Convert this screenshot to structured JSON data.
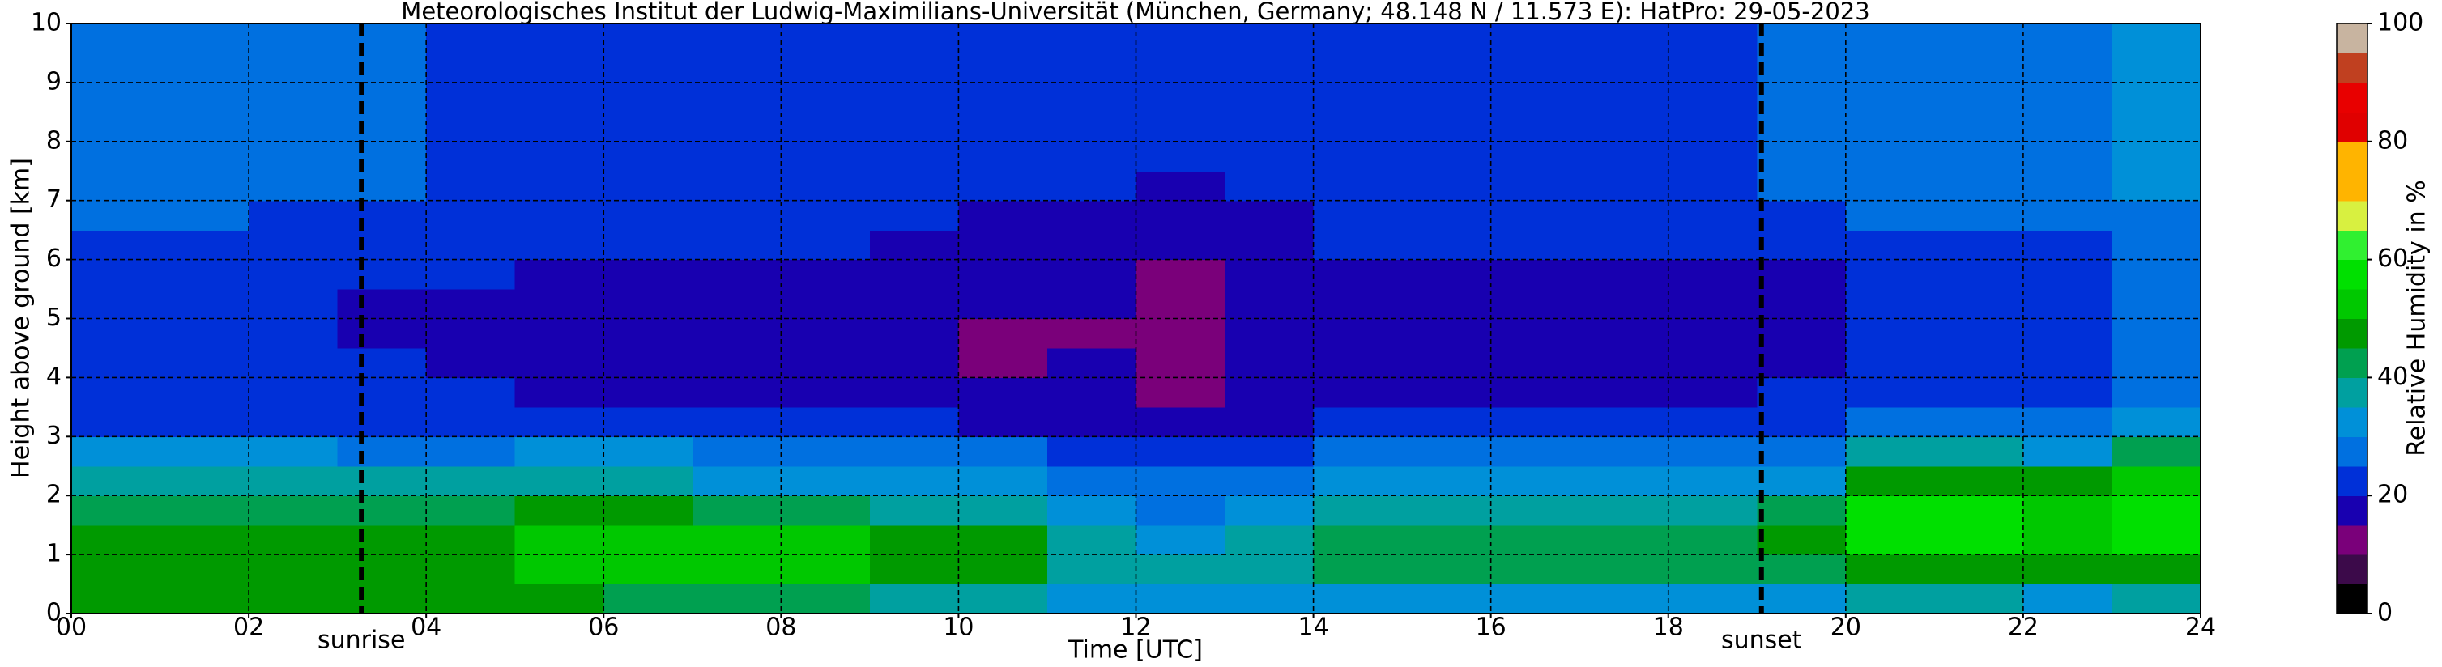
{
  "chart_data": {
    "type": "heatmap",
    "title": "Meteorologisches Institut der Ludwig-Maximilians-Universität (München, Germany; 48.148 N / 11.573 E):    HatPro: 29-05-2023",
    "x_label": "Time [UTC]",
    "y_label": "Height above ground [km]",
    "xlim": [
      0,
      24
    ],
    "ylim": [
      0,
      10
    ],
    "xticks": [
      {
        "value": 0,
        "label": "00"
      },
      {
        "value": 2,
        "label": "02"
      },
      {
        "value": 4,
        "label": "04"
      },
      {
        "value": 6,
        "label": "06"
      },
      {
        "value": 8,
        "label": "08"
      },
      {
        "value": 10,
        "label": "10"
      },
      {
        "value": 12,
        "label": "12"
      },
      {
        "value": 14,
        "label": "14"
      },
      {
        "value": 16,
        "label": "16"
      },
      {
        "value": 18,
        "label": "18"
      },
      {
        "value": 20,
        "label": "20"
      },
      {
        "value": 22,
        "label": "22"
      },
      {
        "value": 24,
        "label": "24"
      }
    ],
    "yticks": [
      0,
      1,
      2,
      3,
      4,
      5,
      6,
      7,
      8,
      9,
      10
    ],
    "grid": true,
    "xbins": [
      0,
      1,
      2,
      3,
      4,
      5,
      6,
      7,
      8,
      9,
      10,
      11,
      12,
      13,
      14,
      15,
      16,
      17,
      18,
      19,
      20,
      21,
      22,
      23,
      24
    ],
    "ybins": [
      0,
      0.5,
      1,
      1.5,
      2,
      2.5,
      3,
      3.5,
      4,
      4.5,
      5,
      5.5,
      6,
      6.5,
      7,
      7.5,
      8,
      8.5,
      9,
      9.5,
      10
    ],
    "z": [
      [
        47,
        47,
        46,
        46,
        45,
        45,
        44,
        43,
        40,
        38,
        37,
        34,
        33,
        33,
        33,
        33,
        33,
        33,
        33,
        33,
        35,
        35,
        34,
        35
      ],
      [
        45,
        45,
        45,
        46,
        48,
        52,
        53,
        52,
        50,
        48,
        46,
        38,
        35,
        37,
        40,
        40,
        40,
        40,
        40,
        44,
        48,
        48,
        47,
        48
      ],
      [
        45,
        45,
        45,
        46,
        48,
        52,
        53,
        52,
        50,
        48,
        46,
        35,
        33,
        35,
        40,
        40,
        40,
        40,
        40,
        45,
        55,
        56,
        54,
        55
      ],
      [
        40,
        40,
        40,
        41,
        42,
        45,
        45,
        43,
        41,
        38,
        36,
        31,
        29,
        30,
        36,
        36,
        36,
        36,
        37,
        42,
        55,
        56,
        53,
        55
      ],
      [
        35,
        35,
        35,
        35,
        35,
        35,
        35,
        34,
        33,
        32,
        30,
        28,
        27,
        28,
        32,
        32,
        32,
        32,
        32,
        34,
        48,
        48,
        45,
        50
      ],
      [
        30,
        30,
        30,
        29,
        29,
        30,
        30,
        29,
        28,
        27,
        25,
        24,
        23,
        24,
        28,
        28,
        28,
        28,
        28,
        27,
        36,
        36,
        34,
        40
      ],
      [
        24,
        24,
        23,
        23,
        23,
        22,
        22,
        21,
        20,
        20,
        19,
        19,
        17,
        18,
        21,
        21,
        21,
        21,
        21,
        22,
        28,
        27,
        26,
        30
      ],
      [
        21,
        21,
        21,
        21,
        20,
        19,
        19,
        19,
        18,
        17,
        16,
        16,
        14,
        16,
        19,
        19,
        19,
        19,
        19,
        20,
        24,
        23,
        23,
        27
      ],
      [
        20,
        20,
        20,
        20,
        19,
        18,
        18,
        17,
        16,
        15,
        14,
        15,
        13,
        15,
        18,
        18,
        18,
        18,
        18,
        19,
        22,
        22,
        22,
        26
      ],
      [
        20,
        20,
        20,
        19,
        19,
        18,
        18,
        17,
        16,
        15,
        14,
        14,
        13,
        15,
        18,
        18,
        18,
        18,
        18,
        19,
        22,
        22,
        22,
        26
      ],
      [
        20,
        20,
        20,
        19,
        19,
        18,
        18,
        18,
        17,
        16,
        15,
        15,
        13,
        16,
        18,
        18,
        18,
        18,
        18,
        19,
        22,
        22,
        22,
        26
      ],
      [
        21,
        21,
        20,
        20,
        20,
        19,
        19,
        19,
        18,
        17,
        16,
        16,
        14,
        17,
        19,
        19,
        19,
        19,
        19,
        19,
        23,
        22,
        23,
        26
      ],
      [
        23,
        23,
        22,
        22,
        21,
        20,
        20,
        20,
        20,
        19,
        18,
        18,
        16,
        18,
        20,
        20,
        20,
        20,
        20,
        20,
        24,
        23,
        24,
        27
      ],
      [
        25,
        25,
        24,
        23,
        23,
        21,
        21,
        21,
        21,
        20,
        19,
        19,
        18,
        19,
        20,
        20,
        20,
        20,
        20,
        22,
        25,
        25,
        25,
        28
      ],
      [
        27,
        27,
        26,
        25,
        24,
        22,
        22,
        22,
        21,
        21,
        20,
        20,
        19,
        20,
        21,
        21,
        21,
        21,
        21,
        25,
        27,
        27,
        27,
        30
      ],
      [
        27,
        27,
        26,
        25,
        24,
        22,
        22,
        22,
        21,
        21,
        21,
        21,
        20,
        21,
        21,
        21,
        21,
        21,
        21,
        25,
        27,
        27,
        28,
        31
      ],
      [
        27,
        27,
        26,
        25,
        24,
        22,
        22,
        22,
        21,
        21,
        21,
        21,
        20,
        21,
        21,
        21,
        21,
        21,
        21,
        25,
        27,
        27,
        28,
        31
      ],
      [
        27,
        27,
        26,
        25,
        24,
        22,
        22,
        22,
        21,
        21,
        21,
        21,
        20,
        21,
        21,
        21,
        21,
        21,
        21,
        25,
        27,
        27,
        28,
        31
      ],
      [
        27,
        27,
        26,
        25,
        24,
        22,
        22,
        22,
        21,
        21,
        21,
        21,
        20,
        21,
        21,
        21,
        21,
        21,
        21,
        25,
        27,
        27,
        28,
        31
      ],
      [
        27,
        27,
        26,
        25,
        24,
        22,
        22,
        22,
        21,
        21,
        21,
        21,
        20,
        21,
        21,
        21,
        21,
        21,
        21,
        25,
        27,
        27,
        28,
        31
      ]
    ],
    "colorbar": {
      "label": "Relative Humidity in %",
      "lim": [
        0,
        100
      ],
      "ticks": [
        0,
        20,
        40,
        60,
        80,
        100
      ],
      "colors": [
        "#000000",
        "#3c0a4a",
        "#7a007a",
        "#1800b0",
        "#0030d8",
        "#0070e0",
        "#0090d8",
        "#00a0a0",
        "#00a050",
        "#009a00",
        "#00c800",
        "#00e000",
        "#30f030",
        "#d8f040",
        "#ffb400",
        "#ffb400",
        "#e00000",
        "#e80000",
        "#c04020",
        "#c8b4a0"
      ]
    },
    "annotations": [
      {
        "x": 3.27,
        "label": "sunrise"
      },
      {
        "x": 19.05,
        "label": "sunset"
      }
    ]
  }
}
